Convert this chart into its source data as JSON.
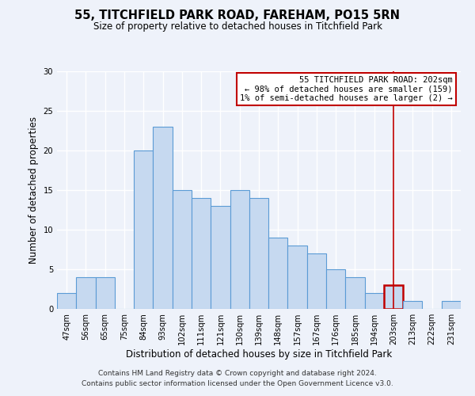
{
  "title": "55, TITCHFIELD PARK ROAD, FAREHAM, PO15 5RN",
  "subtitle": "Size of property relative to detached houses in Titchfield Park",
  "xlabel": "Distribution of detached houses by size in Titchfield Park",
  "ylabel": "Number of detached properties",
  "footer_line1": "Contains HM Land Registry data © Crown copyright and database right 2024.",
  "footer_line2": "Contains public sector information licensed under the Open Government Licence v3.0.",
  "bin_labels": [
    "47sqm",
    "56sqm",
    "65sqm",
    "75sqm",
    "84sqm",
    "93sqm",
    "102sqm",
    "111sqm",
    "121sqm",
    "130sqm",
    "139sqm",
    "148sqm",
    "157sqm",
    "167sqm",
    "176sqm",
    "185sqm",
    "194sqm",
    "203sqm",
    "213sqm",
    "222sqm",
    "231sqm"
  ],
  "bar_values": [
    2,
    4,
    4,
    0,
    20,
    23,
    15,
    14,
    13,
    15,
    14,
    9,
    8,
    7,
    5,
    4,
    2,
    3,
    1,
    0,
    1
  ],
  "bar_color": "#c6d9f0",
  "bar_edge_color": "#5b9bd5",
  "highlight_bar_index": 17,
  "highlight_bar_edge_color": "#c00000",
  "vline_color": "#c00000",
  "ylim": [
    0,
    30
  ],
  "yticks": [
    0,
    5,
    10,
    15,
    20,
    25,
    30
  ],
  "annotation_title": "55 TITCHFIELD PARK ROAD: 202sqm",
  "annotation_line1": "← 98% of detached houses are smaller (159)",
  "annotation_line2": "1% of semi-detached houses are larger (2) →",
  "background_color": "#eef2fa",
  "grid_color": "#ffffff",
  "title_fontsize": 10.5,
  "subtitle_fontsize": 8.5,
  "label_fontsize": 8.5,
  "tick_fontsize": 7.2,
  "footer_fontsize": 6.5
}
